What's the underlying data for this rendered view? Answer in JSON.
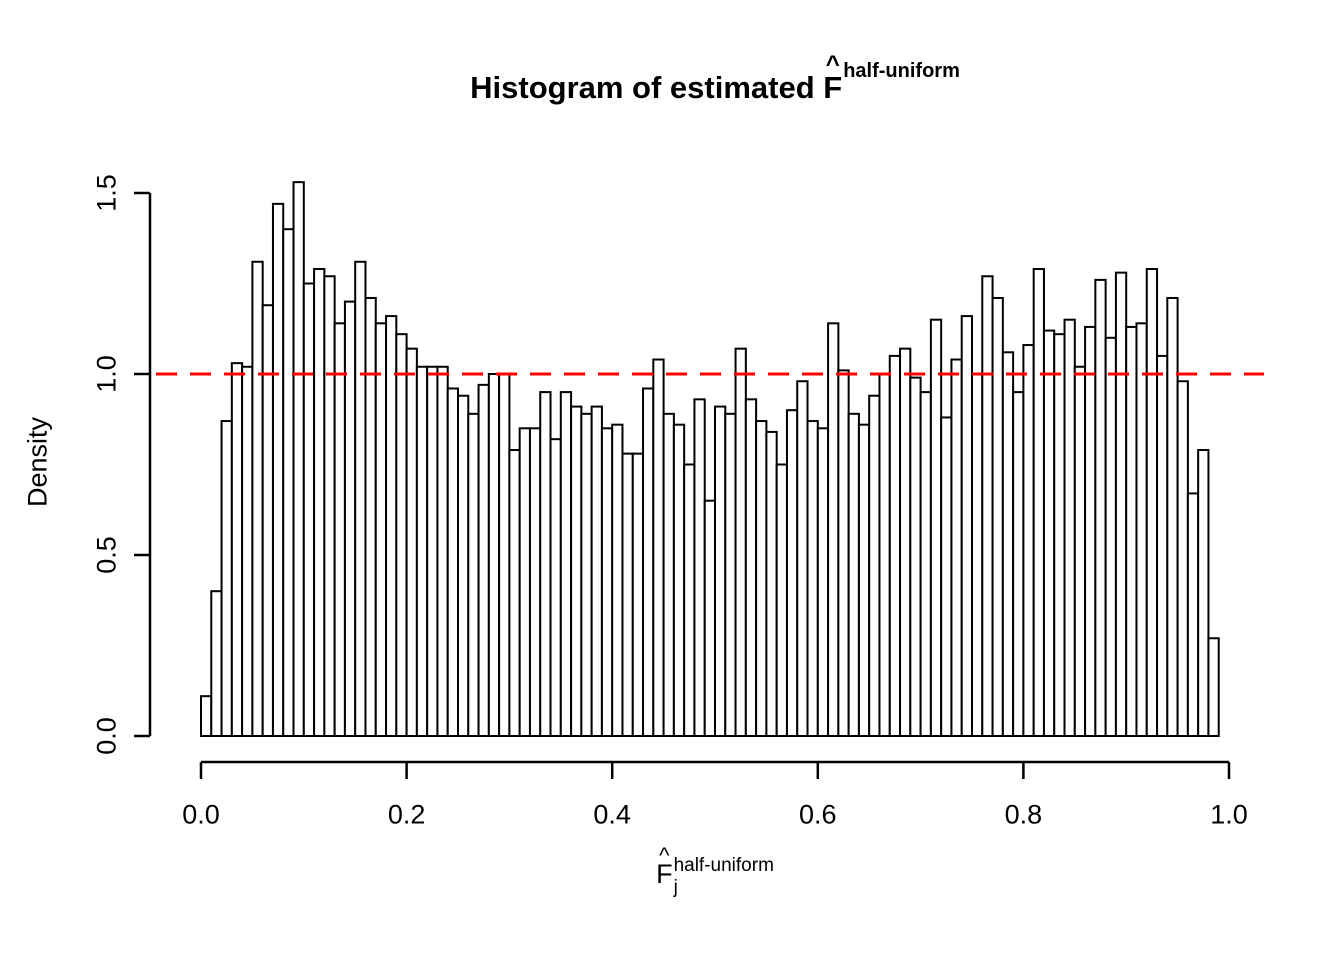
{
  "title": {
    "prefix": "Histogram of estimated ",
    "f": "F",
    "hat": "^",
    "superscript": "half-uniform"
  },
  "y_axis": {
    "label": "Density",
    "tick_labels": [
      "0.0",
      "0.5",
      "1.0",
      "1.5"
    ],
    "tick_values": [
      0.0,
      0.5,
      1.0,
      1.5
    ]
  },
  "x_axis": {
    "tick_labels": [
      "0.0",
      "0.2",
      "0.4",
      "0.6",
      "0.8",
      "1.0"
    ],
    "tick_values": [
      0.0,
      0.2,
      0.4,
      0.6,
      0.8,
      1.0
    ],
    "label": {
      "f": "F",
      "hat": "^",
      "subscript": "j",
      "superscript": "half-uniform"
    }
  },
  "reference_line": {
    "value": 1.0,
    "color": "#ff0000",
    "style": "dashed"
  },
  "chart_data": {
    "type": "bar",
    "subtype": "histogram",
    "title": "Histogram of estimated F-hat half-uniform",
    "xlabel": "F-hat_j half-uniform",
    "ylabel": "Density",
    "xlim": [
      0,
      1
    ],
    "ylim": [
      0,
      1.5
    ],
    "grid": false,
    "bar_fill": "#ffffff",
    "bar_stroke": "#000000",
    "bin_start": 0.0,
    "bin_width": 0.01,
    "densities": [
      0.11,
      0.4,
      0.87,
      1.03,
      1.02,
      1.31,
      1.19,
      1.47,
      1.4,
      1.53,
      1.25,
      1.29,
      1.27,
      1.14,
      1.2,
      1.31,
      1.21,
      1.14,
      1.16,
      1.11,
      1.07,
      1.02,
      1.02,
      1.02,
      0.96,
      0.94,
      0.89,
      0.97,
      1.0,
      1.0,
      0.79,
      0.85,
      0.85,
      0.95,
      0.82,
      0.95,
      0.91,
      0.89,
      0.91,
      0.85,
      0.86,
      0.78,
      0.78,
      0.96,
      1.04,
      0.89,
      0.86,
      0.75,
      0.93,
      0.65,
      0.91,
      0.89,
      1.07,
      0.93,
      0.87,
      0.84,
      0.75,
      0.9,
      0.98,
      0.87,
      0.85,
      1.14,
      1.01,
      0.89,
      0.86,
      0.94,
      1.0,
      1.05,
      1.07,
      0.99,
      0.95,
      1.15,
      0.88,
      1.04,
      1.16,
      1.0,
      1.27,
      1.21,
      1.06,
      0.95,
      1.08,
      1.29,
      1.12,
      1.11,
      1.15,
      1.02,
      1.13,
      1.26,
      1.1,
      1.28,
      1.13,
      1.14,
      1.29,
      1.05,
      1.21,
      0.98,
      0.67,
      0.79,
      0.27,
      0.0
    ]
  }
}
